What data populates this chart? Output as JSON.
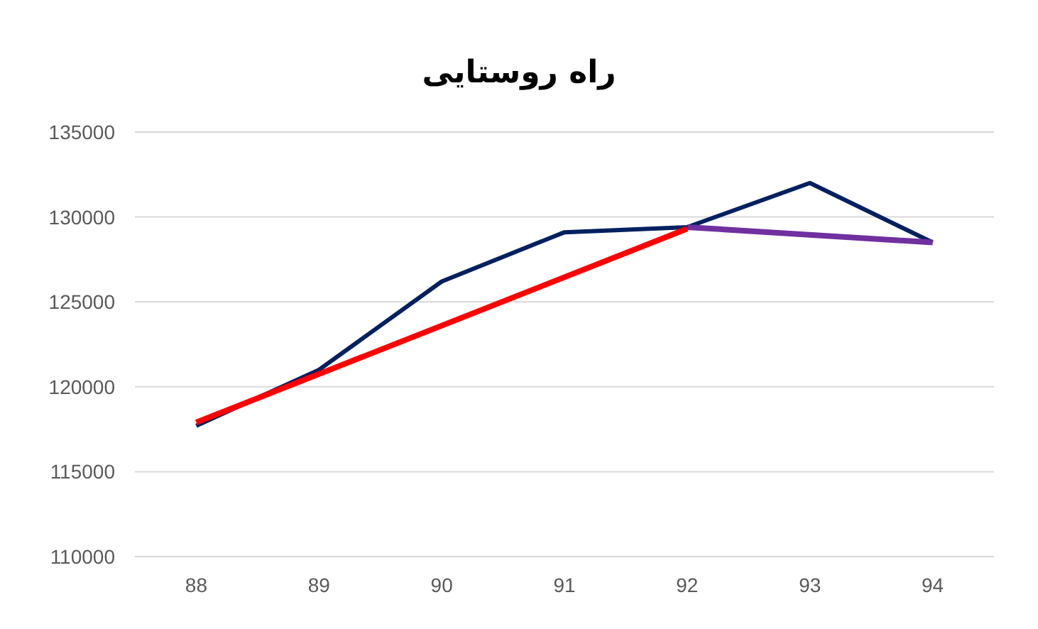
{
  "chart_data": {
    "type": "line",
    "title": "راه روستایی",
    "x": [
      88,
      89,
      90,
      91,
      92,
      93,
      94
    ],
    "xlim": [
      87.5,
      94.5
    ],
    "xticks": [
      88,
      89,
      90,
      91,
      92,
      93,
      94
    ],
    "ylim": [
      110000,
      135000
    ],
    "yticks": [
      110000,
      115000,
      120000,
      125000,
      130000,
      135000
    ],
    "grid": "y",
    "series": [
      {
        "color": "#002060",
        "values": [
          117700,
          121000,
          126200,
          129100,
          129400,
          132000,
          128500
        ]
      },
      {
        "type": "line",
        "color": "#ff0000",
        "x": [
          88,
          92
        ],
        "values": [
          117900,
          129300
        ]
      },
      {
        "type": "line",
        "color": "#7030a0",
        "x": [
          92,
          94
        ],
        "values": [
          129400,
          128500
        ]
      }
    ]
  }
}
